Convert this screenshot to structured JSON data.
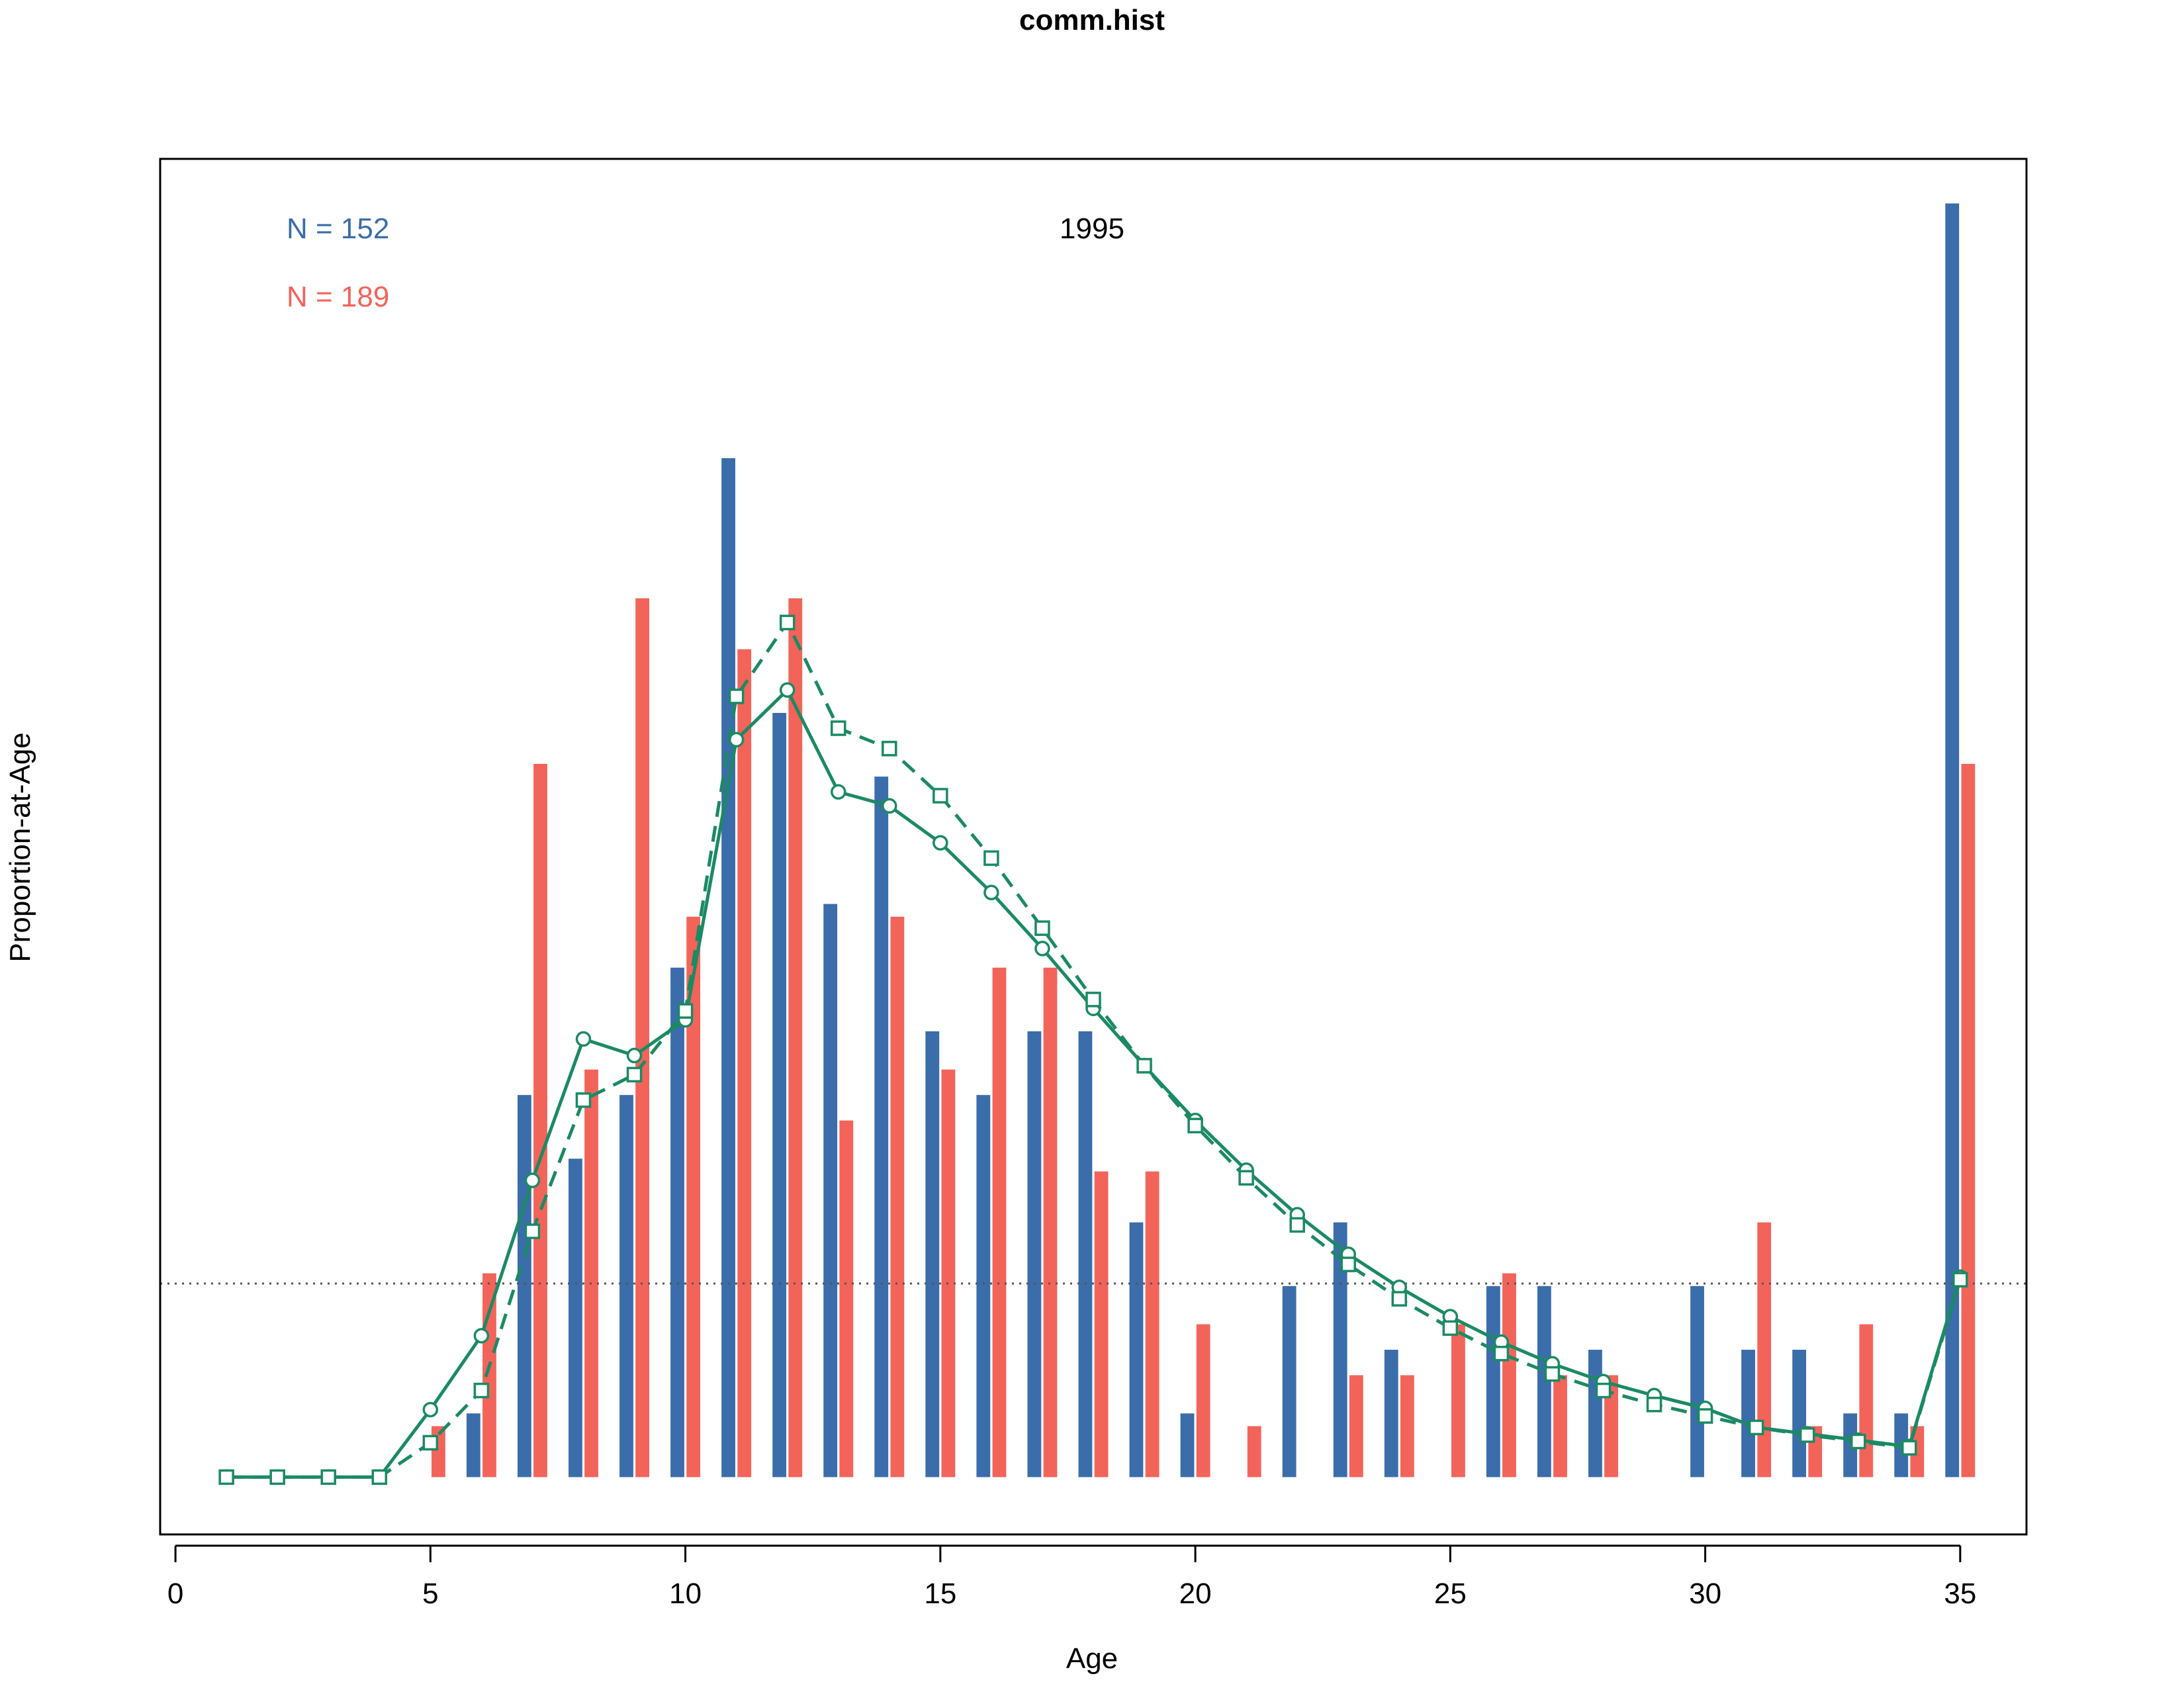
{
  "chart_data": {
    "type": "bar",
    "title": "comm.hist",
    "panel_label": "1995",
    "xlabel": "Age",
    "ylabel": "Proportion-at-Age",
    "xlim": [
      -0.3,
      36.3
    ],
    "ylim": [
      -0.0045,
      0.1035
    ],
    "xticks": [
      0,
      5,
      10,
      15,
      20,
      25,
      30,
      35
    ],
    "grid": false,
    "reference_line": 0.0152,
    "legend": [
      {
        "text": "N = 152",
        "color": "#3A6DAA"
      },
      {
        "text": "N = 189",
        "color": "#F2645A"
      }
    ],
    "bar_series": [
      {
        "color": "#3A6DAA",
        "x": [
          1,
          2,
          3,
          4,
          5,
          6,
          7,
          8,
          9,
          10,
          11,
          12,
          13,
          14,
          15,
          16,
          17,
          18,
          19,
          20,
          21,
          22,
          23,
          24,
          25,
          26,
          27,
          28,
          29,
          30,
          31,
          32,
          33,
          34,
          35
        ],
        "values": [
          0,
          0,
          0,
          0,
          0,
          0.005,
          0.03,
          0.025,
          0.03,
          0.04,
          0.08,
          0.06,
          0.045,
          0.055,
          0.035,
          0.03,
          0.035,
          0.035,
          0.02,
          0.005,
          0,
          0.015,
          0.02,
          0.01,
          0,
          0.015,
          0.015,
          0.01,
          0,
          0.015,
          0.01,
          0.01,
          0.005,
          0.005,
          0.1
        ]
      },
      {
        "color": "#F2645A",
        "x": [
          1,
          2,
          3,
          4,
          5,
          6,
          7,
          8,
          9,
          10,
          11,
          12,
          13,
          14,
          15,
          16,
          17,
          18,
          19,
          20,
          21,
          22,
          23,
          24,
          25,
          26,
          27,
          28,
          29,
          30,
          31,
          32,
          33,
          34,
          35
        ],
        "values": [
          0,
          0,
          0,
          0,
          0.004,
          0.016,
          0.056,
          0.032,
          0.069,
          0.044,
          0.065,
          0.069,
          0.028,
          0.044,
          0.032,
          0.04,
          0.04,
          0.024,
          0.024,
          0.012,
          0.004,
          0,
          0.008,
          0.008,
          0.012,
          0.016,
          0.008,
          0.008,
          0,
          0,
          0.02,
          0.004,
          0.012,
          0.004,
          0.056
        ]
      }
    ],
    "series": [
      {
        "color": "#1B8A63",
        "style": "solid",
        "marker": "circle",
        "x": [
          1,
          2,
          3,
          4,
          5,
          6,
          7,
          8,
          9,
          10,
          11,
          12,
          13,
          14,
          15,
          16,
          17,
          18,
          19,
          20,
          21,
          22,
          23,
          24,
          25,
          26,
          27,
          28,
          29,
          30,
          31,
          32,
          33,
          34,
          35
        ],
        "values": [
          0,
          0,
          0,
          0,
          0.0053,
          0.0111,
          0.0233,
          0.0344,
          0.0331,
          0.0359,
          0.0579,
          0.0618,
          0.0538,
          0.0527,
          0.0498,
          0.0459,
          0.0415,
          0.0368,
          0.0323,
          0.028,
          0.0241,
          0.0206,
          0.0175,
          0.0149,
          0.0126,
          0.0106,
          0.0089,
          0.0075,
          0.0064,
          0.0054,
          0.0039,
          0.0034,
          0.0029,
          0.0024,
          0.0157
        ]
      },
      {
        "color": "#1B8A63",
        "style": "dashed",
        "marker": "square",
        "x": [
          1,
          2,
          3,
          4,
          5,
          6,
          7,
          8,
          9,
          10,
          11,
          12,
          13,
          14,
          15,
          16,
          17,
          18,
          19,
          20,
          21,
          22,
          23,
          24,
          25,
          26,
          27,
          28,
          29,
          30,
          31,
          32,
          33,
          34,
          35
        ],
        "values": [
          0,
          0,
          0,
          0,
          0.0027,
          0.0068,
          0.0193,
          0.0296,
          0.0316,
          0.0366,
          0.0613,
          0.0671,
          0.0588,
          0.0572,
          0.0535,
          0.0486,
          0.0431,
          0.0375,
          0.0323,
          0.0276,
          0.0235,
          0.0198,
          0.0167,
          0.014,
          0.0117,
          0.0097,
          0.0081,
          0.0068,
          0.0057,
          0.0048,
          0.0039,
          0.0033,
          0.0028,
          0.0023,
          0.0155
        ]
      }
    ]
  }
}
